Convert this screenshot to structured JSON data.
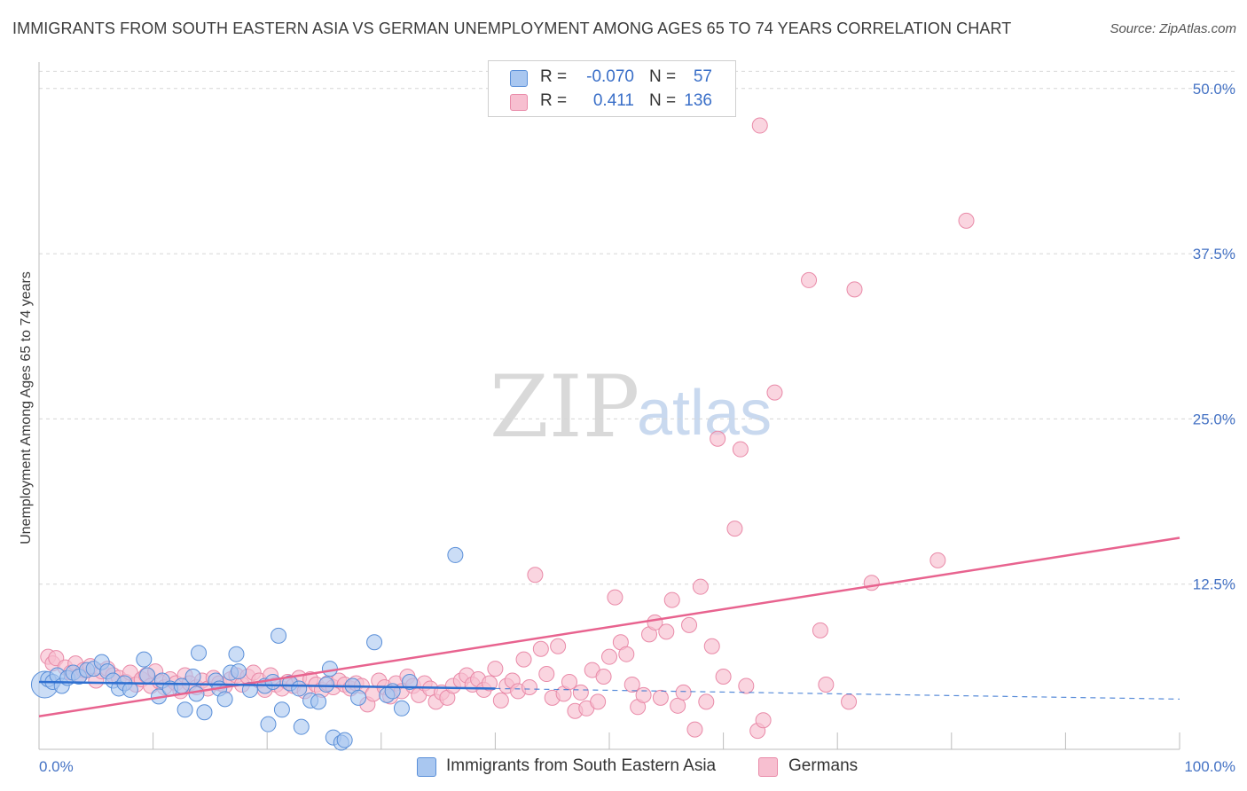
{
  "title": "IMMIGRANTS FROM SOUTH EASTERN ASIA VS GERMAN UNEMPLOYMENT AMONG AGES 65 TO 74 YEARS CORRELATION CHART",
  "source": "Source: ZipAtlas.com",
  "watermark": {
    "zip": "ZIP",
    "atlas": "atlas"
  },
  "legend": {
    "series1": {
      "r_label": "R =",
      "r_value": "-0.070",
      "n_label": "N =",
      "n_value": "57"
    },
    "series2": {
      "r_label": "R =",
      "r_value": "0.411",
      "n_label": "N =",
      "n_value": "136"
    }
  },
  "bottom_legend": {
    "series1": "Immigrants from South Eastern Asia",
    "series2": "Germans"
  },
  "colors": {
    "blue_fill": "#a9c7f0",
    "blue_stroke": "#5a8fd8",
    "blue_line": "#2e6fd0",
    "pink_fill": "#f7bfd0",
    "pink_stroke": "#e98aa8",
    "pink_line": "#e8638f",
    "grid": "#d6d6d6",
    "tick_text": "#4472c4"
  },
  "chart_data": {
    "type": "scatter",
    "title": "IMMIGRANTS FROM SOUTH EASTERN ASIA VS GERMAN UNEMPLOYMENT AMONG AGES 65 TO 74 YEARS CORRELATION CHART",
    "xlabel": "",
    "ylabel": "Unemployment Among Ages 65 to 74 years",
    "xlim": [
      0,
      100
    ],
    "ylim": [
      0,
      52
    ],
    "x_tick_labels": [
      "0.0%",
      "100.0%"
    ],
    "y_ticks": [
      12.5,
      25.0,
      37.5,
      50.0
    ],
    "y_tick_labels": [
      "12.5%",
      "25.0%",
      "37.5%",
      "50.0%"
    ],
    "grid": true,
    "series": [
      {
        "name": "Immigrants from South Eastern Asia",
        "color": "blue",
        "points": [
          [
            0.5,
            4.9
          ],
          [
            0.8,
            5.3
          ],
          [
            1.2,
            5.1
          ],
          [
            1.6,
            5.6
          ],
          [
            2.0,
            4.8
          ],
          [
            2.5,
            5.4
          ],
          [
            3.0,
            5.8
          ],
          [
            3.5,
            5.5
          ],
          [
            4.2,
            6.0
          ],
          [
            4.8,
            6.1
          ],
          [
            5.5,
            6.6
          ],
          [
            6.0,
            5.9
          ],
          [
            6.5,
            5.2
          ],
          [
            7.0,
            4.6
          ],
          [
            7.5,
            5.0
          ],
          [
            8.0,
            4.5
          ],
          [
            9.2,
            6.8
          ],
          [
            9.5,
            5.6
          ],
          [
            10.8,
            5.2
          ],
          [
            10.5,
            4.0
          ],
          [
            11.5,
            4.6
          ],
          [
            12.5,
            4.8
          ],
          [
            12.8,
            3.0
          ],
          [
            13.5,
            5.5
          ],
          [
            13.8,
            4.2
          ],
          [
            14.0,
            7.3
          ],
          [
            14.5,
            2.8
          ],
          [
            15.5,
            5.2
          ],
          [
            15.8,
            4.6
          ],
          [
            16.3,
            3.8
          ],
          [
            16.8,
            5.8
          ],
          [
            17.5,
            5.9
          ],
          [
            17.3,
            7.2
          ],
          [
            18.5,
            4.5
          ],
          [
            19.8,
            4.8
          ],
          [
            20.1,
            1.9
          ],
          [
            20.5,
            5.1
          ],
          [
            21.0,
            8.6
          ],
          [
            21.3,
            3.0
          ],
          [
            22.0,
            5.0
          ],
          [
            22.8,
            4.6
          ],
          [
            23.0,
            1.7
          ],
          [
            23.8,
            3.7
          ],
          [
            24.5,
            3.6
          ],
          [
            25.2,
            4.9
          ],
          [
            25.5,
            6.1
          ],
          [
            25.8,
            0.9
          ],
          [
            26.5,
            0.5
          ],
          [
            26.8,
            0.7
          ],
          [
            27.5,
            4.8
          ],
          [
            28.0,
            3.9
          ],
          [
            29.4,
            8.1
          ],
          [
            30.5,
            4.1
          ],
          [
            31.0,
            4.4
          ],
          [
            31.8,
            3.1
          ],
          [
            32.5,
            5.1
          ],
          [
            36.5,
            14.7
          ]
        ],
        "trend": {
          "x": [
            0,
            40
          ],
          "y": [
            5.1,
            4.6
          ],
          "dashed_extension": {
            "x": [
              40,
              100
            ],
            "y": [
              4.6,
              3.8
            ]
          }
        }
      },
      {
        "name": "Germans",
        "color": "pink",
        "points": [
          [
            0.8,
            7.0
          ],
          [
            1.2,
            6.5
          ],
          [
            1.5,
            6.9
          ],
          [
            2.3,
            6.2
          ],
          [
            2.8,
            5.8
          ],
          [
            3.2,
            6.5
          ],
          [
            3.6,
            5.6
          ],
          [
            3.9,
            6.0
          ],
          [
            4.5,
            6.3
          ],
          [
            5.0,
            5.2
          ],
          [
            5.5,
            5.9
          ],
          [
            6.0,
            6.1
          ],
          [
            6.5,
            5.6
          ],
          [
            7.0,
            5.4
          ],
          [
            7.6,
            5.1
          ],
          [
            8.0,
            5.8
          ],
          [
            8.5,
            4.9
          ],
          [
            9.0,
            5.3
          ],
          [
            9.4,
            5.6
          ],
          [
            9.8,
            4.8
          ],
          [
            10.2,
            5.9
          ],
          [
            10.6,
            5.1
          ],
          [
            11.0,
            4.7
          ],
          [
            11.5,
            5.3
          ],
          [
            12.0,
            5.0
          ],
          [
            12.4,
            4.4
          ],
          [
            12.8,
            5.6
          ],
          [
            13.2,
            5.0
          ],
          [
            13.8,
            4.7
          ],
          [
            14.3,
            5.2
          ],
          [
            14.8,
            4.6
          ],
          [
            15.3,
            5.4
          ],
          [
            15.8,
            5.0
          ],
          [
            16.3,
            4.8
          ],
          [
            16.8,
            5.3
          ],
          [
            17.3,
            5.6
          ],
          [
            17.8,
            4.9
          ],
          [
            18.3,
            5.5
          ],
          [
            18.8,
            5.8
          ],
          [
            19.3,
            5.2
          ],
          [
            19.8,
            4.5
          ],
          [
            20.3,
            5.6
          ],
          [
            20.8,
            4.9
          ],
          [
            21.3,
            4.6
          ],
          [
            21.8,
            5.1
          ],
          [
            22.3,
            4.8
          ],
          [
            22.8,
            5.4
          ],
          [
            23.3,
            4.4
          ],
          [
            23.8,
            5.3
          ],
          [
            24.3,
            4.9
          ],
          [
            24.8,
            4.5
          ],
          [
            25.3,
            5.0
          ],
          [
            25.8,
            4.7
          ],
          [
            26.3,
            5.2
          ],
          [
            26.8,
            4.9
          ],
          [
            27.3,
            4.6
          ],
          [
            27.8,
            5.0
          ],
          [
            28.3,
            4.8
          ],
          [
            28.8,
            3.4
          ],
          [
            29.3,
            4.2
          ],
          [
            29.8,
            5.2
          ],
          [
            30.3,
            4.7
          ],
          [
            30.8,
            4.0
          ],
          [
            31.3,
            5.0
          ],
          [
            31.8,
            4.4
          ],
          [
            32.3,
            5.5
          ],
          [
            32.8,
            4.8
          ],
          [
            33.3,
            4.1
          ],
          [
            33.8,
            5.0
          ],
          [
            34.3,
            4.6
          ],
          [
            34.8,
            3.6
          ],
          [
            35.3,
            4.3
          ],
          [
            35.8,
            3.9
          ],
          [
            36.3,
            4.8
          ],
          [
            37.0,
            5.2
          ],
          [
            37.5,
            5.6
          ],
          [
            38.0,
            4.9
          ],
          [
            38.5,
            5.3
          ],
          [
            39.0,
            4.5
          ],
          [
            39.5,
            5.0
          ],
          [
            40.0,
            6.1
          ],
          [
            40.5,
            3.7
          ],
          [
            41.0,
            4.8
          ],
          [
            41.5,
            5.2
          ],
          [
            42.0,
            4.4
          ],
          [
            42.5,
            6.8
          ],
          [
            43.0,
            4.7
          ],
          [
            43.5,
            13.2
          ],
          [
            44.0,
            7.6
          ],
          [
            44.5,
            5.7
          ],
          [
            45.0,
            3.9
          ],
          [
            45.5,
            7.8
          ],
          [
            46.0,
            4.2
          ],
          [
            46.5,
            5.1
          ],
          [
            47.0,
            2.9
          ],
          [
            47.5,
            4.3
          ],
          [
            48.0,
            3.1
          ],
          [
            48.5,
            6.0
          ],
          [
            49.0,
            3.6
          ],
          [
            49.5,
            5.5
          ],
          [
            50.0,
            7.0
          ],
          [
            50.5,
            11.5
          ],
          [
            51.0,
            8.1
          ],
          [
            51.5,
            7.2
          ],
          [
            52.0,
            4.9
          ],
          [
            52.5,
            3.2
          ],
          [
            53.0,
            4.1
          ],
          [
            53.5,
            8.7
          ],
          [
            54.0,
            9.6
          ],
          [
            54.5,
            3.9
          ],
          [
            55.0,
            8.9
          ],
          [
            55.5,
            11.3
          ],
          [
            56.0,
            3.3
          ],
          [
            56.5,
            4.3
          ],
          [
            57.0,
            9.4
          ],
          [
            57.5,
            1.5
          ],
          [
            58.0,
            12.3
          ],
          [
            58.5,
            3.6
          ],
          [
            59.0,
            7.8
          ],
          [
            59.5,
            23.5
          ],
          [
            60.0,
            5.5
          ],
          [
            61.0,
            16.7
          ],
          [
            61.5,
            22.7
          ],
          [
            62.0,
            4.8
          ],
          [
            63.0,
            1.4
          ],
          [
            63.5,
            2.2
          ],
          [
            63.2,
            47.2
          ],
          [
            64.5,
            27.0
          ],
          [
            67.5,
            35.5
          ],
          [
            68.5,
            9.0
          ],
          [
            69.0,
            4.9
          ],
          [
            71.5,
            34.8
          ],
          [
            71.0,
            3.6
          ],
          [
            73.0,
            12.6
          ],
          [
            78.8,
            14.3
          ],
          [
            81.3,
            40.0
          ]
        ],
        "trend": {
          "x": [
            0,
            100
          ],
          "y": [
            2.5,
            16.0
          ]
        }
      }
    ]
  }
}
